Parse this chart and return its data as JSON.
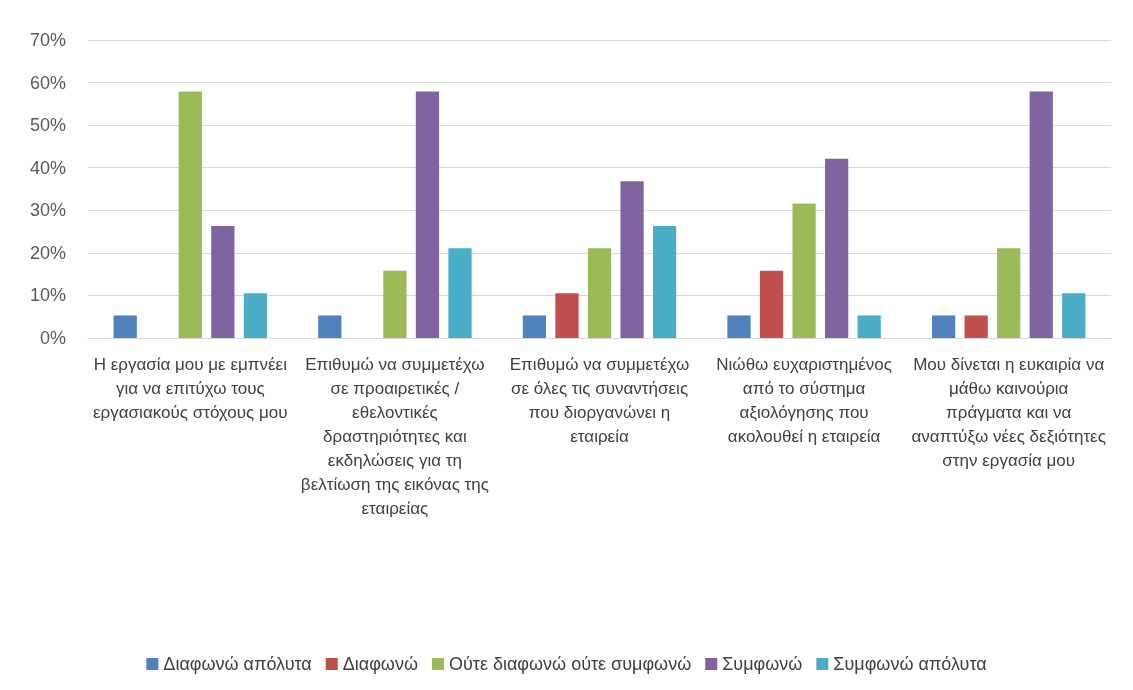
{
  "chart_data": {
    "type": "bar",
    "categories": [
      "Η εργασία μου με εμπνέει για να επιτύχω τους εργασιακούς στόχους μου",
      "Επιθυμώ να συμμετέχω σε προαιρετικές / εθελοντικές δραστηριότητες και εκδηλώσεις για τη βελτίωση της εικόνας της εταιρείας",
      "Επιθυμώ να συμμετέχω σε όλες τις συναντήσεις που διοργανώνει η εταιρεία",
      "Νιώθω ευχαριστημένος από το σύστημα αξιολόγησης που ακολουθεί η εταιρεία",
      "Μου δίνεται η ευκαιρία να μάθω καινούρια πράγματα και να αναπτύξω νέες δεξιότητες στην εργασία μου"
    ],
    "series": [
      {
        "name": "Διαφωνώ απόλυτα",
        "color": "#4f81bd",
        "values": [
          5.3,
          5.3,
          5.3,
          5.3,
          5.3
        ]
      },
      {
        "name": "Διαφωνώ",
        "color": "#c0504d",
        "values": [
          0,
          0,
          10.5,
          15.8,
          5.3
        ]
      },
      {
        "name": "Ούτε διαφωνώ ούτε συμφωνώ",
        "color": "#9bbb59",
        "values": [
          57.9,
          15.8,
          21.1,
          31.6,
          21.1
        ]
      },
      {
        "name": "Συμφωνώ",
        "color": "#8064a2",
        "values": [
          26.3,
          57.9,
          36.8,
          42.1,
          57.9
        ]
      },
      {
        "name": "Συμφωνώ απόλυτα",
        "color": "#4bacc6",
        "values": [
          10.5,
          21.1,
          26.3,
          5.3,
          10.5
        ]
      }
    ],
    "ylim": [
      0,
      70
    ],
    "yticks": [
      {
        "value": 0,
        "label": "0%"
      },
      {
        "value": 10,
        "label": "10%"
      },
      {
        "value": 20,
        "label": "20%"
      },
      {
        "value": 30,
        "label": "30%"
      },
      {
        "value": 40,
        "label": "40%"
      },
      {
        "value": 50,
        "label": "50%"
      },
      {
        "value": 60,
        "label": "60%"
      },
      {
        "value": 70,
        "label": "70%"
      }
    ],
    "grid": true,
    "legend": "bottom"
  }
}
